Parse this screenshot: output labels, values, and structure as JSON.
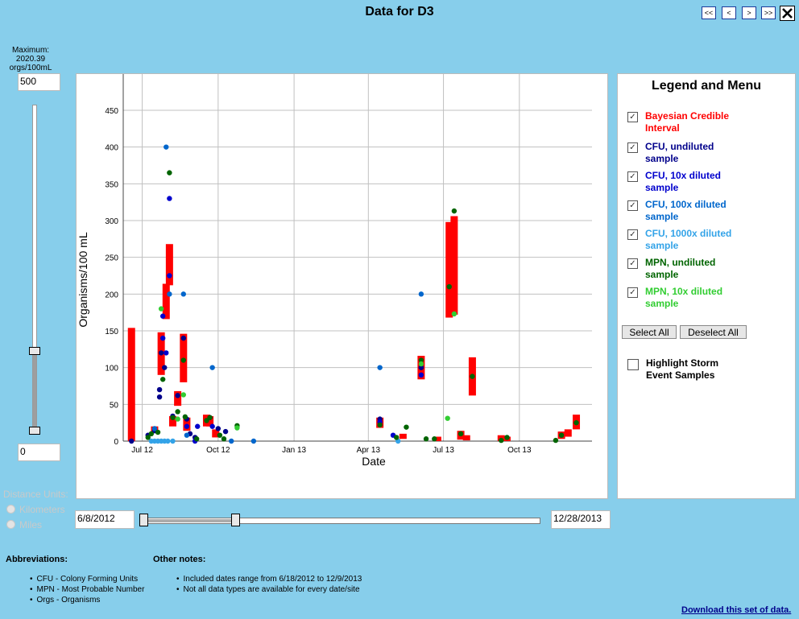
{
  "page": {
    "title": "Data for D3",
    "max_label": "Maximum:",
    "max_value": "2020.39 orgs/100mL"
  },
  "nav": {
    "first": "<<",
    "prev": "<",
    "next": ">",
    "last": ">>"
  },
  "yslider": {
    "top_value": "500",
    "bottom_value": "0"
  },
  "date_range": {
    "start": "6/8/2012",
    "end": "12/28/2013"
  },
  "distance": {
    "label": "Distance Units:",
    "options": [
      "Kilometers",
      "Miles"
    ]
  },
  "legend": {
    "title": "Legend and Menu",
    "items": [
      {
        "label": "Bayesian Credible Interval",
        "color": "#ff0000",
        "checked": true
      },
      {
        "label": "CFU, undiluted sample",
        "color": "#00008b",
        "checked": true
      },
      {
        "label": "CFU, 10x diluted sample",
        "color": "#0000cd",
        "checked": true
      },
      {
        "label": "CFU, 100x diluted sample",
        "color": "#0066cc",
        "checked": true
      },
      {
        "label": "CFU, 1000x diluted sample",
        "color": "#33a3e8",
        "checked": true
      },
      {
        "label": "MPN, undiluted sample",
        "color": "#006400",
        "checked": true
      },
      {
        "label": "MPN, 10x diluted sample",
        "color": "#32cd32",
        "checked": true
      }
    ],
    "select_all": "Select All",
    "deselect_all": "Deselect All",
    "highlight": "Highlight Storm Event Samples"
  },
  "notes": {
    "abbrev_title": "Abbreviations:",
    "abbrev": [
      "CFU - Colony Forming Units",
      "MPN - Most Probable Number",
      "Orgs - Organisms"
    ],
    "other_title": "Other notes:",
    "other": [
      "Included dates range from 6/18/2012 to 12/9/2013",
      "Not all data types are available for every date/site"
    ]
  },
  "download": "Download this set of data.",
  "chart_data": {
    "type": "scatter",
    "xlabel": "Date",
    "ylabel": "Organisms/100 mL",
    "xlim": [
      "2012-06-08",
      "2013-12-28"
    ],
    "ylim": [
      0,
      450
    ],
    "yticks": [
      0,
      50,
      100,
      150,
      200,
      250,
      300,
      350,
      400,
      450
    ],
    "xticks": [
      {
        "label": "Jul 12",
        "date": "2012-07-01"
      },
      {
        "label": "Oct 12",
        "date": "2012-10-01"
      },
      {
        "label": "Jan 13",
        "date": "2013-01-01"
      },
      {
        "label": "Apr 13",
        "date": "2013-04-01"
      },
      {
        "label": "Jul 13",
        "date": "2013-07-01"
      },
      {
        "label": "Oct 13",
        "date": "2013-10-01"
      }
    ],
    "grid": true,
    "intervals": [
      [
        "2012-06-18",
        0,
        154
      ],
      [
        "2012-07-16",
        12,
        20
      ],
      [
        "2012-07-24",
        90,
        148
      ],
      [
        "2012-07-30",
        166,
        214
      ],
      [
        "2012-08-03",
        212,
        268
      ],
      [
        "2012-08-07",
        20,
        34
      ],
      [
        "2012-08-13",
        48,
        68
      ],
      [
        "2012-08-20",
        80,
        146
      ],
      [
        "2012-08-24",
        14,
        32
      ],
      [
        "2012-09-17",
        20,
        36
      ],
      [
        "2012-09-21",
        20,
        34
      ],
      [
        "2012-09-28",
        5,
        16
      ],
      [
        "2013-04-15",
        18,
        32
      ],
      [
        "2013-05-13",
        3,
        10
      ],
      [
        "2013-06-04",
        84,
        116
      ],
      [
        "2013-06-24",
        0,
        6
      ],
      [
        "2013-07-08",
        168,
        298
      ],
      [
        "2013-07-14",
        172,
        306
      ],
      [
        "2013-07-22",
        2,
        14
      ],
      [
        "2013-07-29",
        1,
        8
      ],
      [
        "2013-08-05",
        62,
        114
      ],
      [
        "2013-09-09",
        0,
        8
      ],
      [
        "2013-09-16",
        0,
        6
      ],
      [
        "2013-11-21",
        3,
        13
      ],
      [
        "2013-11-29",
        6,
        16
      ],
      [
        "2013-12-09",
        16,
        36
      ]
    ],
    "series": [
      {
        "name": "CFU, undiluted sample",
        "color": "#00008b",
        "points": [
          [
            "2012-06-18",
            0
          ],
          [
            "2012-07-08",
            8
          ],
          [
            "2012-07-16",
            14
          ],
          [
            "2012-07-22",
            70
          ],
          [
            "2012-07-22",
            60
          ],
          [
            "2012-07-24",
            120
          ],
          [
            "2012-07-28",
            100
          ],
          [
            "2012-08-07",
            34
          ],
          [
            "2012-08-13",
            62
          ],
          [
            "2012-08-20",
            140
          ],
          [
            "2012-08-24",
            30
          ],
          [
            "2012-08-28",
            10
          ],
          [
            "2012-09-03",
            5
          ],
          [
            "2012-09-21",
            32
          ],
          [
            "2012-10-01",
            17
          ],
          [
            "2012-10-10",
            13
          ],
          [
            "2013-04-15",
            30
          ],
          [
            "2013-06-04",
            100
          ],
          [
            "2013-06-04",
            100
          ]
        ]
      },
      {
        "name": "CFU, 10x diluted sample",
        "color": "#0000cd",
        "points": [
          [
            "2012-07-26",
            170
          ],
          [
            "2012-07-26",
            140
          ],
          [
            "2012-07-30",
            120
          ],
          [
            "2012-08-03",
            330
          ],
          [
            "2012-08-03",
            225
          ],
          [
            "2012-08-24",
            20
          ],
          [
            "2012-09-06",
            20
          ],
          [
            "2012-09-24",
            20
          ],
          [
            "2012-09-03",
            0
          ],
          [
            "2013-04-15",
            26
          ],
          [
            "2013-05-01",
            8
          ],
          [
            "2013-06-04",
            90
          ]
        ]
      },
      {
        "name": "CFU, 100x diluted sample",
        "color": "#0066cc",
        "points": [
          [
            "2012-07-30",
            400
          ],
          [
            "2012-08-03",
            200
          ],
          [
            "2012-08-20",
            200
          ],
          [
            "2012-07-16",
            17
          ],
          [
            "2012-08-24",
            8
          ],
          [
            "2012-09-24",
            100
          ],
          [
            "2012-10-17",
            0
          ],
          [
            "2012-11-13",
            0
          ],
          [
            "2013-04-15",
            100
          ],
          [
            "2013-06-04",
            200
          ]
        ]
      },
      {
        "name": "CFU, 1000x diluted sample",
        "color": "#33a3e8",
        "points": [
          [
            "2012-07-12",
            0
          ],
          [
            "2012-07-16",
            0
          ],
          [
            "2012-07-20",
            0
          ],
          [
            "2012-07-24",
            0
          ],
          [
            "2012-07-28",
            0
          ],
          [
            "2012-08-01",
            0
          ],
          [
            "2012-08-07",
            0
          ],
          [
            "2013-05-07",
            0
          ]
        ]
      },
      {
        "name": "MPN, undiluted sample",
        "color": "#006400",
        "points": [
          [
            "2012-07-08",
            5
          ],
          [
            "2012-07-12",
            10
          ],
          [
            "2012-07-20",
            12
          ],
          [
            "2012-07-26",
            84
          ],
          [
            "2012-08-03",
            365
          ],
          [
            "2012-08-07",
            32
          ],
          [
            "2012-08-13",
            40
          ],
          [
            "2012-08-20",
            110
          ],
          [
            "2012-08-22",
            33
          ],
          [
            "2012-09-05",
            3
          ],
          [
            "2012-09-17",
            28
          ],
          [
            "2012-09-21",
            32
          ],
          [
            "2012-10-03",
            8
          ],
          [
            "2012-10-08",
            3
          ],
          [
            "2012-10-24",
            21
          ],
          [
            "2013-04-15",
            22
          ],
          [
            "2013-05-05",
            5
          ],
          [
            "2013-05-17",
            19
          ],
          [
            "2013-06-04",
            110
          ],
          [
            "2013-06-10",
            3
          ],
          [
            "2013-06-20",
            3
          ],
          [
            "2013-07-08",
            210
          ],
          [
            "2013-07-14",
            313
          ],
          [
            "2013-07-22",
            10
          ],
          [
            "2013-08-05",
            88
          ],
          [
            "2013-09-09",
            1
          ],
          [
            "2013-09-16",
            5
          ],
          [
            "2013-11-14",
            1
          ],
          [
            "2013-11-21",
            8
          ],
          [
            "2013-12-09",
            25
          ]
        ]
      },
      {
        "name": "MPN, 10x diluted sample",
        "color": "#32cd32",
        "points": [
          [
            "2012-07-24",
            180
          ],
          [
            "2012-08-13",
            30
          ],
          [
            "2012-08-20",
            63
          ],
          [
            "2012-10-24",
            18
          ],
          [
            "2013-06-04",
            105
          ],
          [
            "2013-07-06",
            31
          ],
          [
            "2013-07-14",
            173
          ]
        ]
      }
    ]
  }
}
